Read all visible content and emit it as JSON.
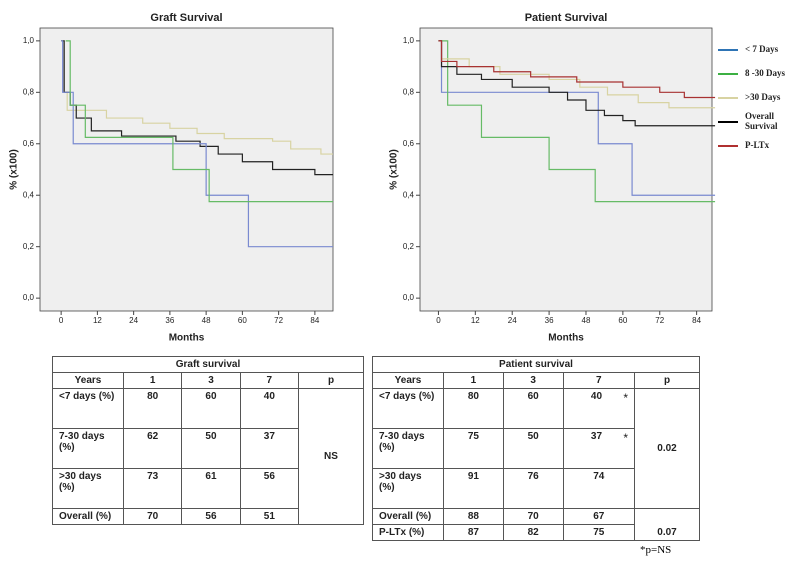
{
  "chart_data": [
    {
      "type": "step",
      "title": "Graft Survival",
      "x_label": "Months",
      "y_label": "% (x100)",
      "xlim": [
        -7,
        90
      ],
      "ylim": [
        -0.05,
        1.05
      ],
      "xticks": [
        0,
        12,
        24,
        36,
        48,
        60,
        72,
        84
      ],
      "yticks": [
        {
          "value": 0,
          "label": "0,0"
        },
        {
          "value": 0.2,
          "label": "0,2"
        },
        {
          "value": 0.4,
          "label": "0,4"
        },
        {
          "value": 0.6,
          "label": "0,6"
        },
        {
          "value": 0.8,
          "label": "0,8"
        },
        {
          "value": 1,
          "label": "1,0"
        }
      ],
      "series": [
        {
          "color": "#d8d3a2",
          "x": [
            0,
            1,
            2,
            15,
            27,
            36,
            45,
            54,
            70,
            76,
            86,
            90
          ],
          "values": [
            1,
            0.8,
            0.73,
            0.7,
            0.68,
            0.66,
            0.64,
            0.62,
            0.61,
            0.58,
            0.56,
            0.56
          ]
        },
        {
          "color": "#222222",
          "x": [
            0,
            1,
            3,
            5,
            10,
            20,
            38,
            46,
            52,
            60,
            70,
            84,
            90
          ],
          "values": [
            1,
            0.8,
            0.75,
            0.7,
            0.65,
            0.63,
            0.61,
            0.59,
            0.56,
            0.53,
            0.5,
            0.48,
            0.48
          ]
        },
        {
          "color": "#7a8ad0",
          "x": [
            0,
            0.5,
            4,
            48,
            62,
            90
          ],
          "values": [
            1,
            0.8,
            0.6,
            0.4,
            0.2,
            0.2
          ]
        },
        {
          "color": "#66bb66",
          "x": [
            1.5,
            3,
            8,
            37,
            49,
            90
          ],
          "values": [
            1,
            0.75,
            0.625,
            0.5,
            0.375,
            0.375
          ]
        }
      ]
    },
    {
      "type": "step",
      "title": "Patient Survival",
      "x_label": "Months",
      "y_label": "% (x100)",
      "xlim": [
        -6,
        89
      ],
      "ylim": [
        -0.05,
        1.05
      ],
      "xticks": [
        0,
        12,
        24,
        36,
        48,
        60,
        72,
        84
      ],
      "yticks": [
        {
          "value": 0,
          "label": "0,0"
        },
        {
          "value": 0.2,
          "label": "0,2"
        },
        {
          "value": 0.4,
          "label": "0,4"
        },
        {
          "value": 0.6,
          "label": "0,6"
        },
        {
          "value": 0.8,
          "label": "0,8"
        },
        {
          "value": 1,
          "label": "1,0"
        }
      ],
      "series": [
        {
          "name": "< 7 Days",
          "color": "#2e74b5",
          "line_color": "#7a8ad0",
          "x": [
            0,
            1,
            52,
            63,
            90
          ],
          "values": [
            1,
            0.8,
            0.6,
            0.4,
            0.4
          ]
        },
        {
          "name": "8 -30 Days",
          "color": "#3cb043",
          "line_color": "#66bb66",
          "x": [
            0,
            3,
            14,
            36,
            51,
            90
          ],
          "values": [
            1,
            0.75,
            0.625,
            0.5,
            0.375,
            0.375
          ]
        },
        {
          "name": ">30 Days",
          "color": "#d8d3a2",
          "line_color": "#d8d3a2",
          "x": [
            0,
            1,
            10,
            20,
            36,
            46,
            55,
            65,
            75,
            90
          ],
          "values": [
            1,
            0.93,
            0.9,
            0.87,
            0.85,
            0.82,
            0.79,
            0.76,
            0.74,
            0.74
          ]
        },
        {
          "name": "Overall Survival",
          "color": "#000000",
          "line_color": "#222222",
          "x": [
            0,
            1,
            6,
            14,
            24,
            36,
            42,
            48,
            54,
            60,
            64,
            90
          ],
          "values": [
            1,
            0.9,
            0.87,
            0.85,
            0.82,
            0.8,
            0.77,
            0.73,
            0.71,
            0.69,
            0.67,
            0.67
          ]
        },
        {
          "name": "P-LTx",
          "color": "#b03030",
          "line_color": "#a83232",
          "x": [
            0,
            1,
            6,
            18,
            30,
            45,
            60,
            72,
            80,
            90
          ],
          "values": [
            1,
            0.92,
            0.9,
            0.88,
            0.86,
            0.84,
            0.82,
            0.8,
            0.78,
            0.78
          ]
        }
      ]
    }
  ],
  "tables": [
    {
      "title": "Graft survival",
      "header": [
        "Years",
        "1",
        "3",
        "7",
        "p"
      ],
      "rows": [
        [
          "<7 days (%)",
          80,
          60,
          40
        ],
        [
          "7-30 days (%)",
          62,
          50,
          37
        ],
        [
          ">30 days (%)",
          73,
          61,
          56
        ],
        [
          "Overall (%)",
          70,
          56,
          51
        ]
      ],
      "p": [
        "NS"
      ]
    },
    {
      "title": "Patient survival",
      "header": [
        "Years",
        "1",
        "3",
        "7",
        "p"
      ],
      "rows": [
        [
          "<7 days (%)",
          80,
          60,
          40,
          "*"
        ],
        [
          "7-30 days (%)",
          75,
          50,
          37,
          "*"
        ],
        [
          ">30 days (%)",
          91,
          76,
          74
        ],
        [
          "Overall (%)",
          88,
          70,
          67
        ],
        [
          "P-LTx (%)",
          87,
          82,
          75
        ]
      ],
      "p": [
        "0.02",
        "0.07"
      ]
    }
  ],
  "footnote": "*p=NS"
}
